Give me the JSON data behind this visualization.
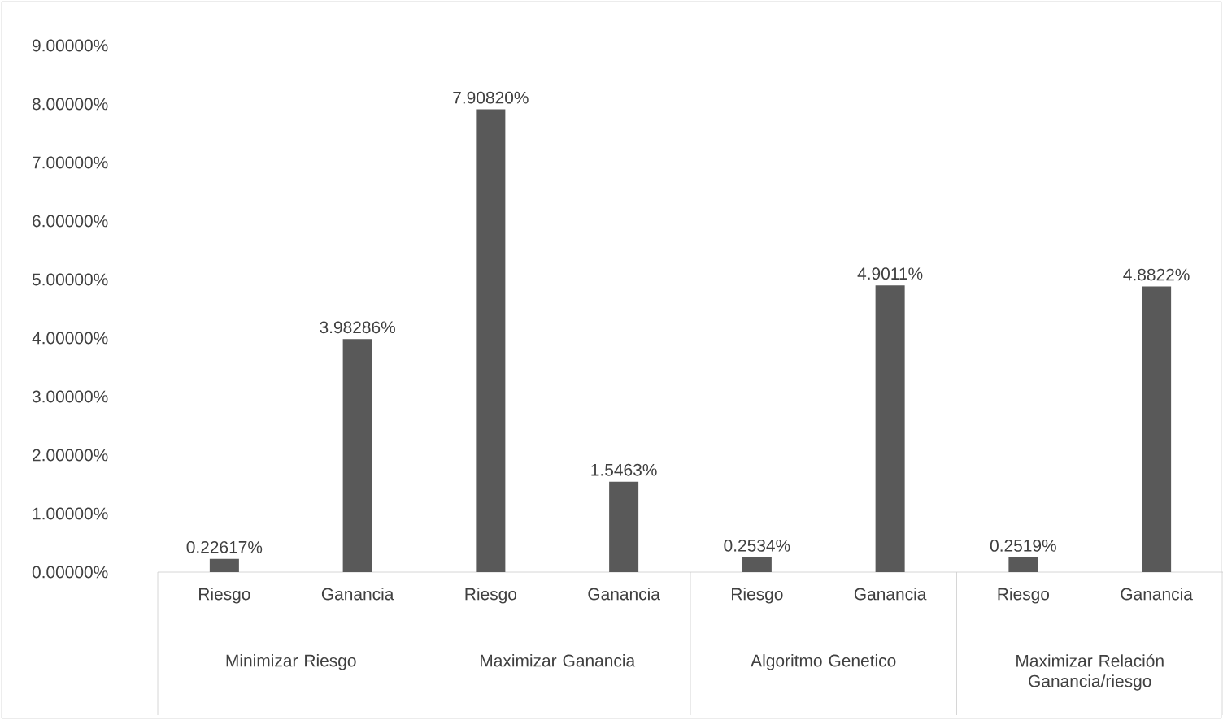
{
  "chart_data": {
    "type": "bar",
    "categories": [
      "Riesgo",
      "Ganancia",
      "Riesgo",
      "Ganancia",
      "Riesgo",
      "Ganancia",
      "Riesgo",
      "Ganancia"
    ],
    "values": [
      0.22617,
      3.98286,
      7.9082,
      1.5463,
      0.2534,
      4.9011,
      0.2519,
      4.8822
    ],
    "value_labels": [
      "0.22617%",
      "3.98286%",
      "7.90820%",
      "1.5463%",
      "0.2534%",
      "4.9011%",
      "0.2519%",
      "4.8822%"
    ],
    "color": "#595959",
    "ylim": [
      0,
      9
    ],
    "yticks": [
      {
        "value": 0,
        "label": "0.00000%"
      },
      {
        "value": 1,
        "label": "1.00000%"
      },
      {
        "value": 2,
        "label": "2.00000%"
      },
      {
        "value": 3,
        "label": "3.00000%"
      },
      {
        "value": 4,
        "label": "4.00000%"
      },
      {
        "value": 5,
        "label": "5.00000%"
      },
      {
        "value": 6,
        "label": "6.00000%"
      },
      {
        "value": 7,
        "label": "7.00000%"
      },
      {
        "value": 8,
        "label": "8.00000%"
      },
      {
        "value": 9,
        "label": "9.00000%"
      }
    ],
    "annotations": [
      "Minimizar Riesgo",
      "Maximizar Ganancia",
      "Algoritmo Genetico",
      "Maximizar Relación Ganancia/riesgo"
    ]
  }
}
